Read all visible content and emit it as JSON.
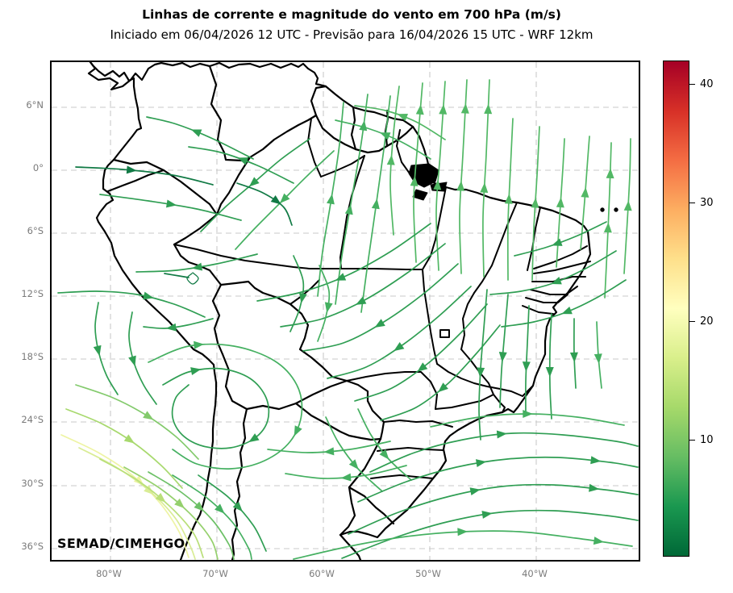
{
  "header": {
    "title": "Linhas de corrente e magnitude do vento em 700 hPa (m/s)",
    "subtitle": "Iniciado em 06/04/2026 12 UTC - Previsão para 16/04/2026 15 UTC - WRF 12km"
  },
  "watermark": "SEMAD/CIMEHGO",
  "axes": {
    "x_tick_labels": [
      "80°W",
      "70°W",
      "60°W",
      "50°W",
      "40°W"
    ],
    "y_tick_labels": [
      "6°N",
      "0°",
      "6°S",
      "12°S",
      "18°S",
      "24°S",
      "30°S",
      "36°S"
    ],
    "tick_label_color": "#7a7a7a",
    "gridline_color": "#c9c9c9",
    "grid_dashed": true
  },
  "colorbar": {
    "orientation": "vertical",
    "colormap": "RdYlGn_r",
    "vmin": 0.3,
    "vmax": 42,
    "tick_values": [
      40,
      30,
      20,
      10
    ],
    "tick_labels": [
      "40",
      "30",
      "20",
      "10"
    ],
    "gradient_top_to_bottom": [
      "#a50026",
      "#d73027",
      "#f46d43",
      "#fdae61",
      "#fee08b",
      "#ffffbf",
      "#d9ef8b",
      "#a6d96a",
      "#66bd63",
      "#1a9850",
      "#006837"
    ]
  },
  "chart_data": {
    "type": "streamline_map",
    "title": "Linhas de corrente e magnitude do vento em 700 hPa (m/s)",
    "variable": "wind streamlines and wind speed magnitude",
    "pressure_level_hPa": 700,
    "units": "m/s",
    "model": "WRF 12km",
    "initialized": "06/04/2026 12 UTC",
    "forecast_valid": "16/04/2026 15 UTC",
    "region": "South America / Brazil",
    "lon_ticks": [
      "80°W",
      "70°W",
      "60°W",
      "50°W",
      "40°W"
    ],
    "lat_ticks": [
      "6°N",
      "0°",
      "6°S",
      "12°S",
      "18°S",
      "24°S",
      "30°S",
      "36°S"
    ],
    "colorbar_range_ms": [
      0.3,
      42
    ],
    "colorbar_ticks_ms": [
      10,
      20,
      30,
      40
    ],
    "grid": true,
    "legend_position": "vertical colorbar at right",
    "flow_summary": "Northward flow over NE Brazil and equatorial Atlantic; NE-to-SW flow across central Brazil; southward flow along the Andes becoming faster (yellow-green, ~15-20 m/s) over the far southwest; eastward flow over the South Atlantic south of 25S; weak eddies over Bolivia and Acre."
  },
  "streamlines": {
    "coord_space": "plot-area pixels, 728x617",
    "default_color": "#2f9e53",
    "lines": [
      {
        "p": "424,214 420,150 424,88 431,30",
        "c": "#52b865",
        "a": [
          0.5
        ]
      },
      {
        "p": "452,248 449,172 454,100 460,26",
        "c": "#52b865",
        "a": [
          0.45,
          0.85
        ]
      },
      {
        "p": "480,258 477,185 482,112 488,24",
        "c": "#52b865",
        "a": [
          0.45,
          0.85
        ]
      },
      {
        "p": "508,262 506,190 510,115 515,22",
        "c": "#52b865",
        "a": [
          0.45,
          0.85
        ]
      },
      {
        "p": "536,266 535,192 539,114 543,22",
        "c": "#52b865",
        "a": [
          0.45,
          0.85
        ]
      },
      {
        "p": "566,270 566,200 569,132 572,70",
        "c": "#52b865",
        "a": [
          0.5
        ]
      },
      {
        "p": "596,270 598,206 602,140 605,80",
        "c": "#52b865",
        "a": [
          0.5
        ]
      },
      {
        "p": "626,254 630,192 634,132 636,95",
        "c": "#52b865",
        "a": [
          0.5
        ]
      },
      {
        "p": "656,232 661,172 665,118 667,92",
        "c": "#52b865",
        "a": [
          0.5
        ]
      },
      {
        "p": "686,292 689,230 692,160 694,100",
        "c": "#52b865",
        "a": [
          0.45,
          0.8
        ]
      },
      {
        "p": "710,262 714,196 717,140 718,95",
        "c": "#52b865",
        "a": [
          0.5
        ]
      },
      {
        "p": "330,290 336,235 346,175 356,110 362,50",
        "c": "#45b061",
        "a": [
          0.5
        ]
      },
      {
        "p": "352,300 360,240 372,170 384,100 392,40",
        "c": "#45b061",
        "a": [
          0.45,
          0.85
        ]
      },
      {
        "p": "384,310 392,250 402,180 412,108 420,42",
        "c": "#45b061",
        "a": [
          0.5
        ]
      },
      {
        "p": "470,120 432,98 392,82 352,72",
        "c": "#45b061",
        "a": [
          0.5
        ]
      },
      {
        "p": "488,96 452,74 414,60 376,54",
        "c": "#52b865",
        "a": [
          0.5
        ]
      },
      {
        "p": "250,120 200,95 155,77 118,68",
        "c": "#2f9e53",
        "a": [
          0.55
        ]
      },
      {
        "p": "300,150 255,128 210,112 170,105",
        "c": "#2f9e53",
        "a": [
          0.5
        ]
      },
      {
        "p": "30,130 88,133 150,140 200,152",
        "c": "#117a45",
        "a": [
          0.4
        ]
      },
      {
        "p": "60,164 120,172 180,182 235,196",
        "c": "#2f9e53",
        "a": [
          0.5
        ]
      },
      {
        "p": "320,95 285,120 250,150 215,180 185,210",
        "c": "#2f9e53",
        "a": [
          0.5
        ]
      },
      {
        "p": "350,110 318,140 286,172 254,204 228,232",
        "c": "#45b061",
        "a": [
          0.5
        ]
      },
      {
        "p": "230,150 262,162 288,180 298,202",
        "c": "#117a45",
        "a": [
          0.6
        ]
      },
      {
        "p": "255,238 205,250 155,258 105,260",
        "c": "#2f9e53",
        "a": [
          0.5
        ]
      },
      {
        "p": "8,286 56,284 106,288 152,300 190,316",
        "c": "#2f9e53",
        "a": [
          0.6
        ]
      },
      {
        "p": "175,261 182,268 175,275 168,268 174,262",
        "c": "#117a45",
        "a": [],
        "w": 1.3
      },
      {
        "p": "140,262 158,265 170,267",
        "c": "#117a45",
        "a": []
      },
      {
        "p": "470,200 420,235 365,265 310,285 255,296",
        "c": "#2f9e53",
        "a": [
          0.55
        ]
      },
      {
        "p": "488,225 440,262 388,295 336,318 284,328",
        "c": "#2f9e53",
        "a": [
          0.55
        ]
      },
      {
        "p": "504,250 460,288 412,322 362,348 312,358",
        "c": "#2f9e53",
        "a": [
          0.55
        ]
      },
      {
        "p": "520,278 480,315 436,350 390,378 342,392",
        "c": "#2f9e53",
        "a": [
          0.55
        ]
      },
      {
        "p": "540,300 505,338 466,374 422,404 376,420",
        "c": "#2f9e53",
        "a": [
          0.55
        ]
      },
      {
        "p": "556,326 526,362 492,398 452,428 408,444",
        "c": "#2f9e53",
        "a": [
          0.55
        ]
      },
      {
        "p": "688,198 650,216 612,230 574,240",
        "c": "#2f9e53",
        "a": [
          0.55
        ]
      },
      {
        "p": "700,234 662,256 622,274 582,284 544,288",
        "c": "#2f9e53",
        "a": [
          0.5
        ]
      },
      {
        "p": "712,270 676,292 638,310 598,322 558,328",
        "c": "#2f9e53",
        "a": [
          0.5
        ]
      },
      {
        "p": "540,282 536,330 532,380 530,430 532,468",
        "c": "#2f9e53",
        "a": [
          0.55
        ]
      },
      {
        "p": "566,288 562,334 558,382 556,428",
        "c": "#2f9e53",
        "a": [
          0.55
        ]
      },
      {
        "p": "592,302 590,348 588,396 588,438",
        "c": "#2f9e53",
        "a": [
          0.55
        ]
      },
      {
        "p": "620,312 618,356 618,402 620,442",
        "c": "#2f9e53",
        "a": [
          0.55
        ]
      },
      {
        "p": "648,318 648,362 650,404",
        "c": "#2f9e53",
        "a": [
          0.55
        ]
      },
      {
        "p": "676,322 678,364 682,404",
        "c": "#45b061",
        "a": [
          0.55
        ]
      },
      {
        "p": "58,298 54,328 58,358 68,388 82,412",
        "c": "#2f9e53",
        "a": [
          0.5
        ]
      },
      {
        "p": "100,310 96,340 102,372 114,400 130,424",
        "c": "#2f9e53",
        "a": [
          0.5
        ]
      },
      {
        "p": "200,318 168,326 140,330 114,328",
        "c": "#2f9e53",
        "a": [
          0.6
        ]
      },
      {
        "p": "30,400 76,416 118,438 154,464 182,492",
        "c": "#83ca6c",
        "a": [
          0.55
        ]
      },
      {
        "p": "18,430 62,448 102,472 136,500 162,528",
        "c": "#a8d96e",
        "a": [
          0.5
        ]
      },
      {
        "p": "300,240 312,272 308,304 296,334",
        "c": "#2f9e53",
        "a": [
          0.55
        ]
      },
      {
        "p": "332,252 344,284 340,316 330,346",
        "c": "#45b061",
        "a": [
          0.55
        ]
      },
      {
        "p": "12,462 58,484 100,512 134,546 158,582 170,614",
        "c": "#eef4a4",
        "a": [
          0.5
        ]
      },
      {
        "p": "34,478 80,502 122,532 154,566 172,600 178,616",
        "c": "#d9ec95",
        "a": [
          0.5
        ]
      },
      {
        "p": "60,492 106,518 146,550 176,584 188,614",
        "c": "#b9df79",
        "a": [
          0.5
        ]
      },
      {
        "p": "90,502 134,528 172,560 198,592 206,616",
        "c": "#95d06d",
        "a": [
          0.5
        ]
      },
      {
        "p": "120,508 162,534 198,566 220,598 226,616",
        "c": "#6cc066",
        "a": [
          0.5
        ]
      },
      {
        "p": "150,512 190,538 224,570 244,602 248,616",
        "c": "#45b061",
        "a": [
          0.5
        ]
      },
      {
        "p": "182,512 220,540 250,574 266,606",
        "c": "#2f9e53",
        "a": [
          0.5
        ]
      },
      {
        "p": "138,400 170,384 210,380 246,392 266,416 268,444 252,466 222,478 188,476 162,462 150,440 154,416 170,400",
        "c": "#2f9e53",
        "a": [
          0.12,
          0.55
        ]
      },
      {
        "p": "120,372 170,352 226,352 276,370 304,400 310,436 296,470 264,494 222,504 180,498 150,480",
        "c": "#45b061",
        "a": [
          0.15,
          0.6
        ]
      },
      {
        "p": "420,470 370,480 318,484 268,480",
        "c": "#45b061",
        "a": [
          0.5
        ]
      },
      {
        "p": "440,500 390,512 338,516 290,510",
        "c": "#45b061",
        "a": [
          0.5
        ]
      },
      {
        "p": "380,430 396,462 418,492 446,518",
        "c": "#45b061",
        "a": [
          0.6
        ]
      },
      {
        "p": "340,440 356,472 380,504 410,532",
        "c": "#45b061",
        "a": [
          0.6
        ]
      },
      {
        "p": "395,508 450,484 510,468 572,460 634,462 700,470 727,476",
        "c": "#2f9e53",
        "a": [
          0.5
        ]
      },
      {
        "p": "380,545 440,520 502,502 565,492 628,490 692,496 727,502",
        "c": "#2f9e53",
        "a": [
          0.45,
          0.85
        ]
      },
      {
        "p": "368,585 430,558 494,538 558,526 622,524 686,530 727,536",
        "c": "#2f9e53",
        "a": [
          0.45,
          0.85
        ]
      },
      {
        "p": "360,615 424,590 490,570 556,558 622,556 688,562 727,568",
        "c": "#2f9e53",
        "a": [
          0.5
        ]
      },
      {
        "p": "300,616 370,600 440,588 510,582 580,582 650,590 720,600",
        "c": "#45b061",
        "a": [
          0.5,
          0.9
        ]
      },
      {
        "p": "470,452 530,440 592,436 652,440 710,450",
        "c": "#45b061",
        "a": [
          0.5
        ]
      }
    ]
  }
}
